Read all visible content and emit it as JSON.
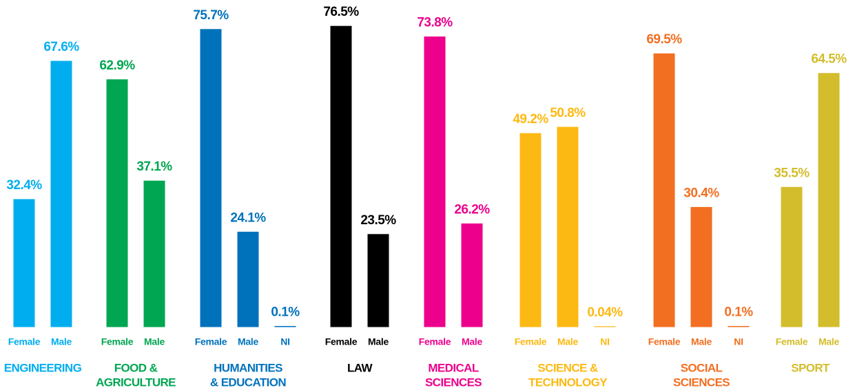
{
  "chart_data": {
    "type": "bar",
    "groups": [
      {
        "name_lines": [
          "ENGINEERING"
        ],
        "color": "#00aeef",
        "categories": [
          "Female",
          "Male"
        ],
        "values": [
          32.4,
          67.6
        ],
        "value_labels": [
          "32.4%",
          "67.6%"
        ]
      },
      {
        "name_lines": [
          "FOOD &",
          "AGRICULTURE"
        ],
        "color": "#00a651",
        "categories": [
          "Female",
          "Male"
        ],
        "values": [
          62.9,
          37.1
        ],
        "value_labels": [
          "62.9%",
          "37.1%"
        ]
      },
      {
        "name_lines": [
          "HUMANITIES",
          "& EDUCATION"
        ],
        "color": "#0072bc",
        "categories": [
          "Female",
          "Male",
          "NI"
        ],
        "values": [
          75.7,
          24.1,
          0.1
        ],
        "value_labels": [
          "75.7%",
          "24.1%",
          "0.1%"
        ]
      },
      {
        "name_lines": [
          "LAW"
        ],
        "color": "#000000",
        "categories": [
          "Female",
          "Male"
        ],
        "values": [
          76.5,
          23.5
        ],
        "value_labels": [
          "76.5%",
          "23.5%"
        ]
      },
      {
        "name_lines": [
          "MEDICAL",
          "SCIENCES"
        ],
        "color": "#ec008c",
        "categories": [
          "Female",
          "Male"
        ],
        "values": [
          73.8,
          26.2
        ],
        "value_labels": [
          "73.8%",
          "26.2%"
        ]
      },
      {
        "name_lines": [
          "SCIENCE &",
          "TECHNOLOGY"
        ],
        "color": "#fdb913",
        "categories": [
          "Female",
          "Male",
          "NI"
        ],
        "values": [
          49.2,
          50.8,
          0.04
        ],
        "value_labels": [
          "49.2%",
          "50.8%",
          "0.04%"
        ]
      },
      {
        "name_lines": [
          "SOCIAL",
          "SCIENCES"
        ],
        "color": "#f26f21",
        "categories": [
          "Female",
          "Male",
          "NI"
        ],
        "values": [
          69.5,
          30.4,
          0.1
        ],
        "value_labels": [
          "69.5%",
          "30.4%",
          "0.1%"
        ]
      },
      {
        "name_lines": [
          "SPORT"
        ],
        "color": "#d4bd2c",
        "categories": [
          "Female",
          "Male"
        ],
        "values": [
          35.5,
          64.5
        ],
        "value_labels": [
          "35.5%",
          "64.5%"
        ]
      }
    ]
  }
}
